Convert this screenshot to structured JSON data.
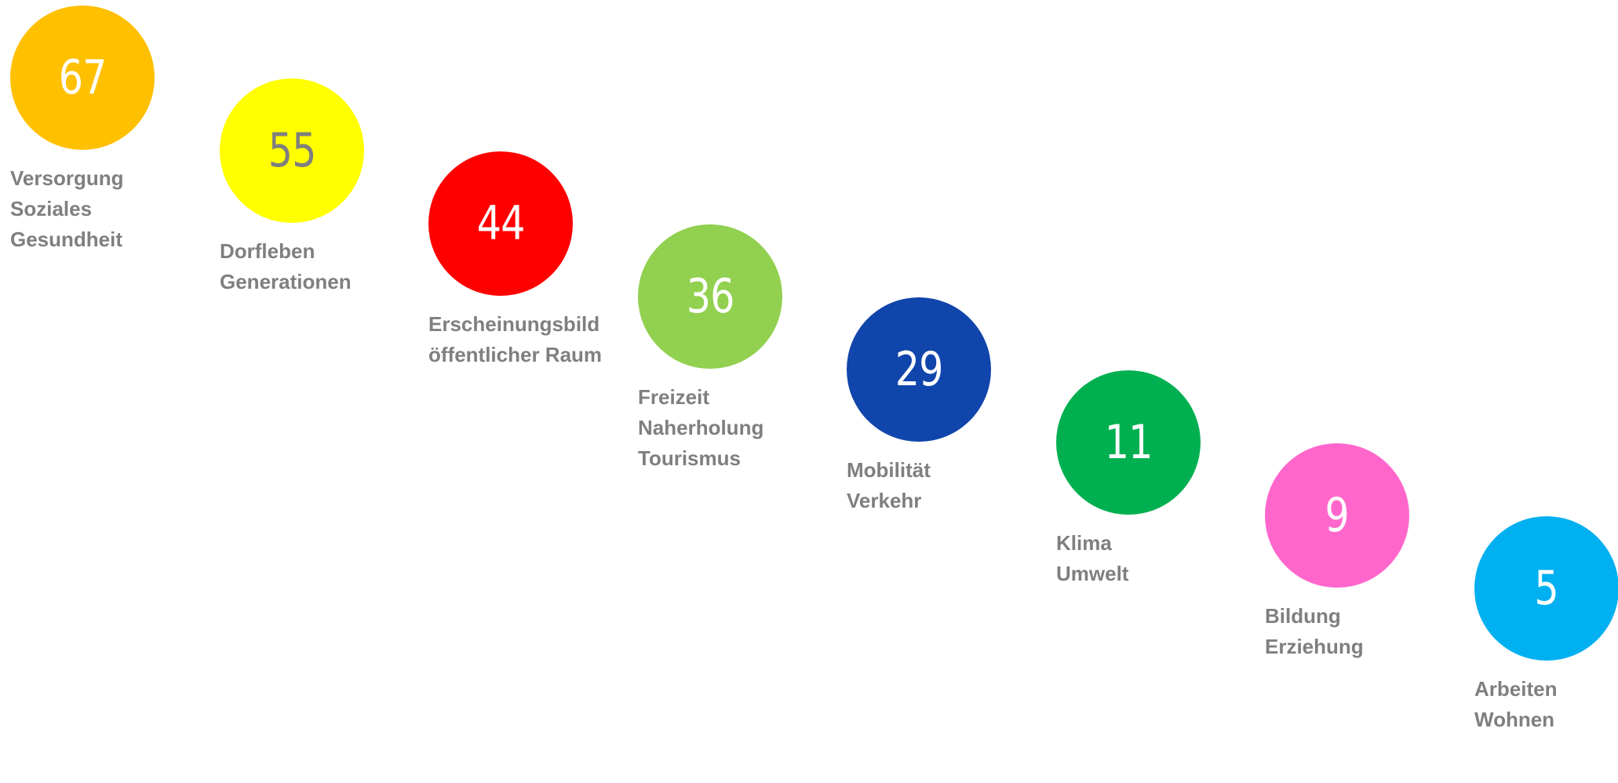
{
  "chart_data": {
    "type": "bubble",
    "title": "",
    "categories": [
      [
        "Versorgung",
        "Soziales",
        "Gesundheit"
      ],
      [
        "Dorfleben",
        "Generationen"
      ],
      [
        "Erscheinungsbild",
        "öffentlicher Raum"
      ],
      [
        "Freizeit",
        "Naherholung",
        "Tourismus"
      ],
      [
        "Mobilität",
        "Verkehr"
      ],
      [
        "Klima",
        "Umwelt"
      ],
      [
        "Bildung",
        "Erziehung"
      ],
      [
        "Arbeiten",
        "Wohnen"
      ]
    ],
    "values": [
      67,
      55,
      44,
      36,
      29,
      11,
      9,
      5
    ],
    "colors": [
      "#FFC000",
      "#FFFF00",
      "#FF0000",
      "#92D050",
      "#1045AB",
      "#00B050",
      "#FF66CC",
      "#00B0F0"
    ],
    "value_text_colors": [
      "#FFFFFF",
      "#7F7F7F",
      "#FFFFFF",
      "#FFFFFF",
      "#FFFFFF",
      "#FFFFFF",
      "#FFFFFF",
      "#FFFFFF"
    ],
    "label_color": "#7F7F7F",
    "legend": "none",
    "grid": false
  }
}
